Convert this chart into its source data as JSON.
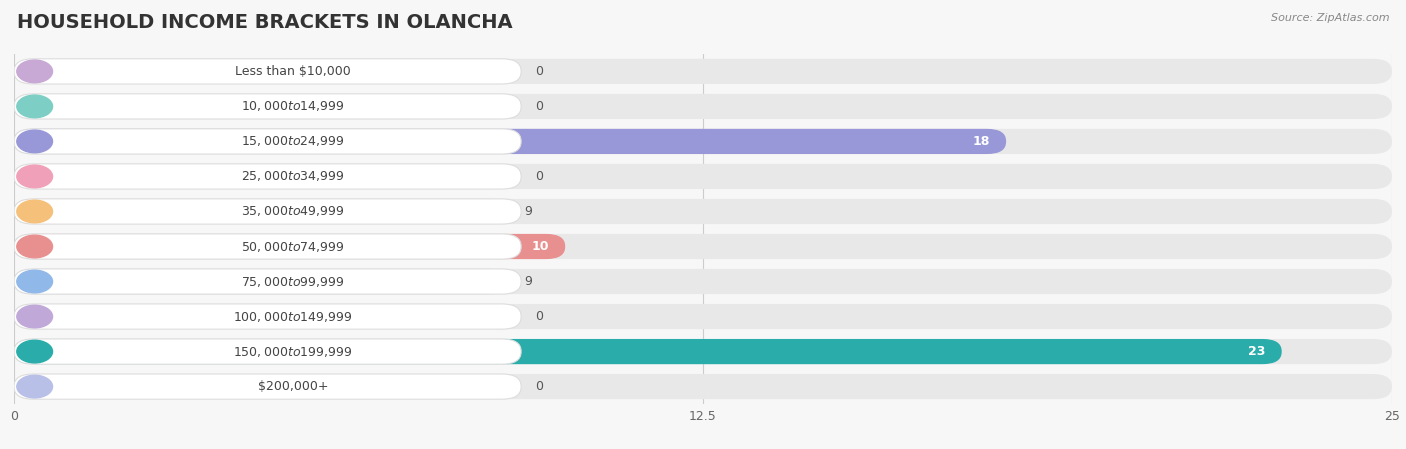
{
  "title": "HOUSEHOLD INCOME BRACKETS IN OLANCHA",
  "source": "Source: ZipAtlas.com",
  "categories": [
    "Less than $10,000",
    "$10,000 to $14,999",
    "$15,000 to $24,999",
    "$25,000 to $34,999",
    "$35,000 to $49,999",
    "$50,000 to $74,999",
    "$75,000 to $99,999",
    "$100,000 to $149,999",
    "$150,000 to $199,999",
    "$200,000+"
  ],
  "values": [
    0,
    0,
    18,
    0,
    9,
    10,
    9,
    0,
    23,
    0
  ],
  "bar_colors": [
    "#c8a8d4",
    "#7dcec4",
    "#9898d8",
    "#f0a0b8",
    "#f5c07a",
    "#e89090",
    "#90b8e8",
    "#c0a8d8",
    "#2aadaa",
    "#b8c0e8"
  ],
  "xlim": [
    0,
    25
  ],
  "xticks": [
    0,
    12.5,
    25
  ],
  "background_color": "#f7f7f7",
  "bar_bg_color": "#e8e8e8",
  "title_fontsize": 14,
  "label_fontsize": 9,
  "value_fontsize": 9
}
